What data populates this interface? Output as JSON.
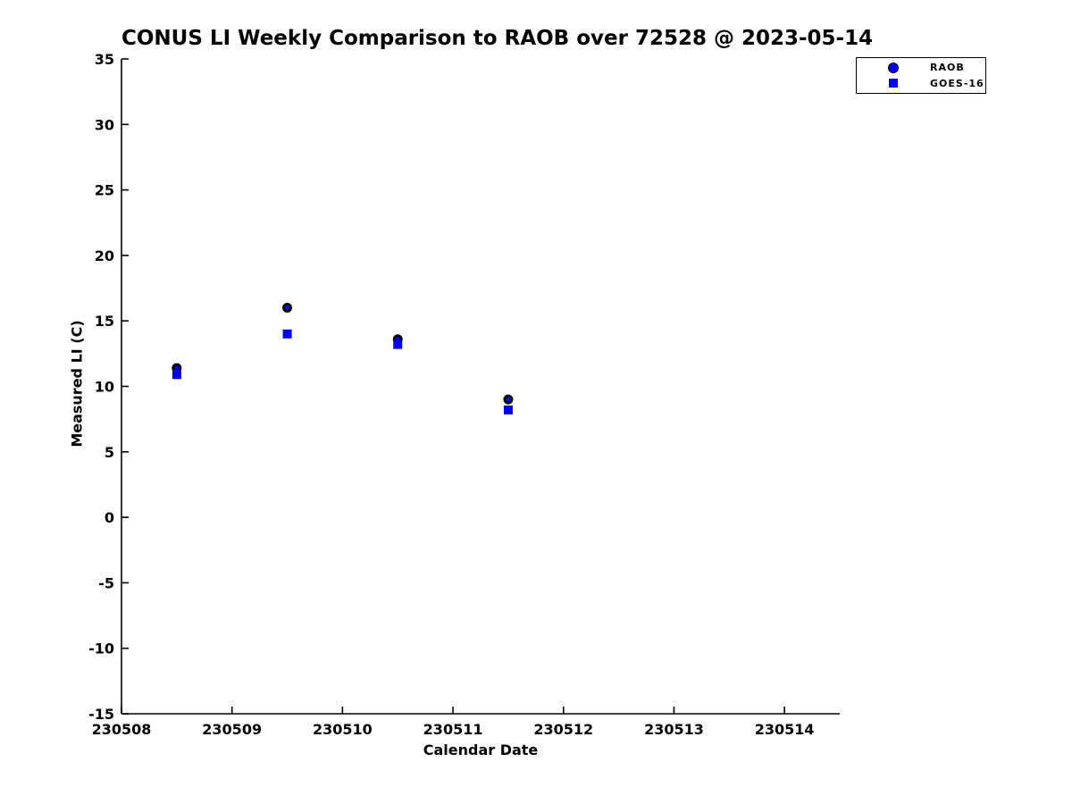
{
  "figure": {
    "background_color": "#ffffff",
    "text_color": "#000000"
  },
  "chart_data": {
    "type": "scatter",
    "title": "CONUS LI Weekly Comparison to RAOB over 72528 @ 2023-05-14",
    "xlabel": "Calendar Date",
    "ylabel": "Measured LI (C)",
    "xlim": [
      230508,
      230514.5
    ],
    "ylim": [
      -15,
      35
    ],
    "x_ticks": [
      230508,
      230509,
      230510,
      230511,
      230512,
      230513,
      230514
    ],
    "x_tick_labels": [
      "230508",
      "230509",
      "230510",
      "230511",
      "230512",
      "230513",
      "230514"
    ],
    "y_ticks": [
      -15,
      -10,
      -5,
      0,
      5,
      10,
      15,
      20,
      25,
      30,
      35
    ],
    "y_tick_labels": [
      "-15",
      "-10",
      "-5",
      "0",
      "5",
      "10",
      "15",
      "20",
      "25",
      "30",
      "35"
    ],
    "grid": false,
    "legend_position": "top-right-outside",
    "axis_color": "#000000",
    "series": [
      {
        "name": "RAOB",
        "marker": "circle",
        "face_color": "#0000ee",
        "edge_color": "#000000",
        "x": [
          230508.5,
          230509.5,
          230510.5,
          230511.5
        ],
        "y": [
          11.4,
          16.0,
          13.6,
          9.0
        ]
      },
      {
        "name": "GOES-16",
        "marker": "square",
        "face_color": "#0000ee",
        "edge_color": "#0000ee",
        "x": [
          230508.5,
          230509.5,
          230510.5,
          230511.5
        ],
        "y": [
          10.9,
          14.0,
          13.2,
          8.2
        ]
      }
    ]
  }
}
